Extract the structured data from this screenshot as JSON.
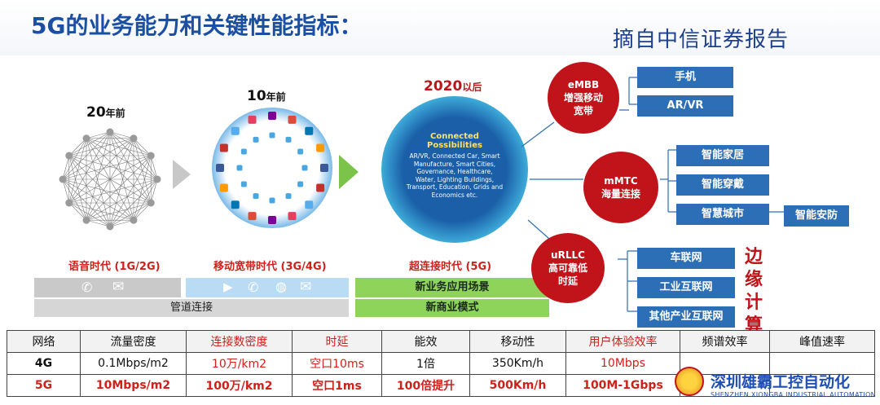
{
  "header": {
    "title": "5G的业务能力和关键性能指标：",
    "source": "摘自中信证券报告"
  },
  "eras": [
    {
      "year": "20",
      "suffix": "年前",
      "label": "语音时代 (1G/2G)"
    },
    {
      "year": "10",
      "suffix": "年前",
      "label": "移动宽带时代 (3G/4G)"
    },
    {
      "year": "2020",
      "suffix": "以后",
      "label": "超连接时代 (5G)"
    }
  ],
  "connected": {
    "title": "Connected Possibilities",
    "body": "AR/VR, Connected Car, Smart Manufacture, Smart Cities, Governance, Healthcare, Water, Lighting Buildings, Transport, Education, Grids and Economics etc."
  },
  "bars": {
    "pipe": "管道连接",
    "new_app": "新业务应用场景",
    "new_biz": "新商业模式"
  },
  "scenarios": [
    {
      "name": "eMBB",
      "desc1": "增强移动",
      "desc2": "宽带",
      "apps": [
        "手机",
        "AR/VR"
      ]
    },
    {
      "name": "mMTC",
      "desc1": "海量连接",
      "desc2": "",
      "apps": [
        "智能家居",
        "智能穿戴",
        "智慧城市"
      ],
      "extra": "智能安防"
    },
    {
      "name": "uRLLC",
      "desc1": "高可靠低",
      "desc2": "时延",
      "apps": [
        "车联网",
        "工业互联网",
        "其他产业互联网"
      ]
    }
  ],
  "edge_computing": [
    "边",
    "缘",
    "计",
    "算"
  ],
  "kpi_table": {
    "headers": [
      "网络",
      "流量密度",
      "连接数密度",
      "时延",
      "能效",
      "移动性",
      "用户体验效率",
      "频谱效率",
      "峰值速率"
    ],
    "rows": [
      [
        "4G",
        "0.1Mbps/m2",
        "10万/km2",
        "空口10ms",
        "1倍",
        "350Km/h",
        "10Mbps",
        "",
        ""
      ],
      [
        "5G",
        "10Mbps/m2",
        "100万/km2",
        "空口1ms",
        "100倍提升",
        "500Km/h",
        "100M-1Gbps",
        "",
        ""
      ]
    ]
  },
  "watermark": {
    "name": "深圳雄霸工控自动化",
    "sub": "SHENZHEN XIONGBA INDUSTRIAL AUTOMATION"
  },
  "colors": {
    "red": "#c0141a",
    "blue": "#2d6fb6",
    "green": "#8ed35a",
    "title_blue": "#1a4fa3"
  }
}
